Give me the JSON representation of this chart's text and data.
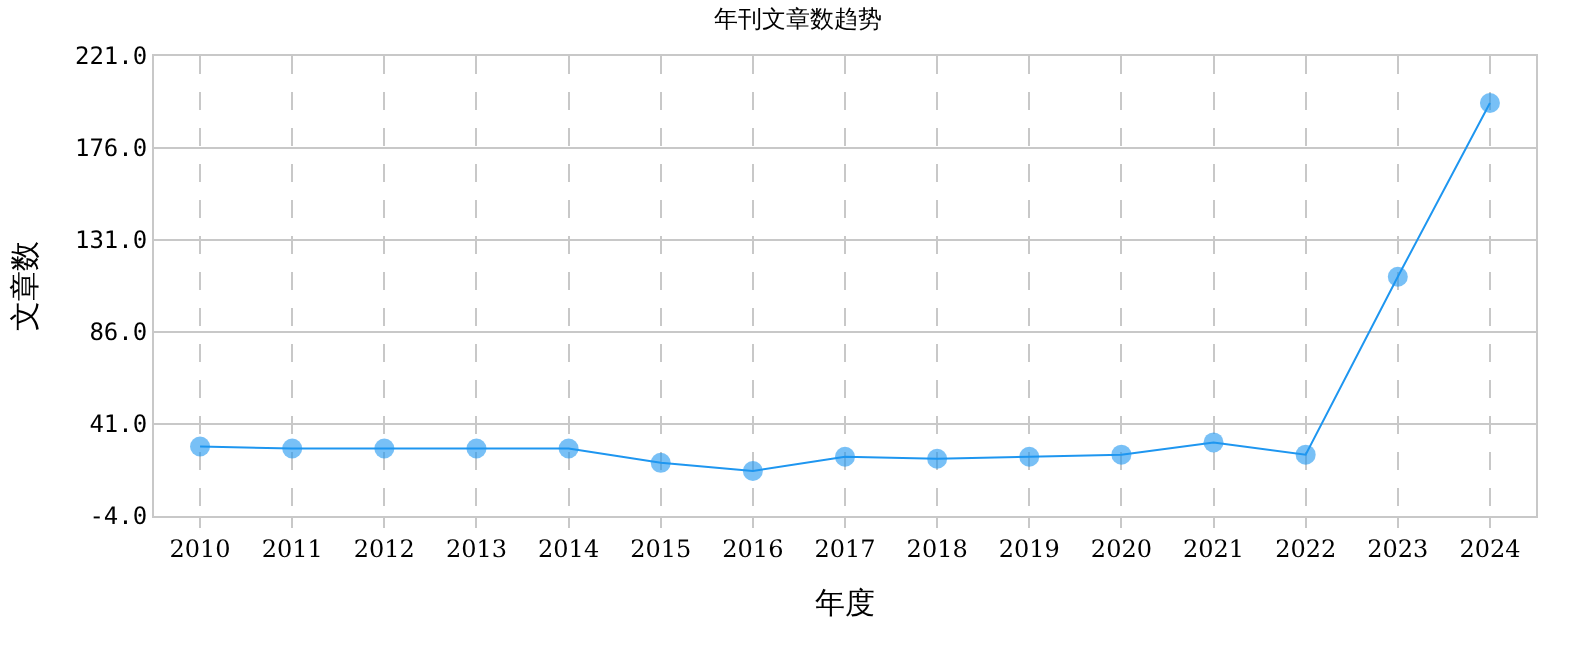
{
  "chart_data": {
    "type": "line",
    "title": "年刊文章数趋势",
    "xlabel": "年度",
    "ylabel": "文章数",
    "categories": [
      "2010",
      "2011",
      "2012",
      "2013",
      "2014",
      "2015",
      "2016",
      "2017",
      "2018",
      "2019",
      "2020",
      "2021",
      "2022",
      "2023",
      "2024"
    ],
    "series": [
      {
        "color": "#1e96f0",
        "values": [
          30,
          29,
          29,
          29,
          29,
          22,
          18,
          25,
          24,
          25,
          26,
          32,
          26,
          113,
          198
        ]
      }
    ],
    "ylim": [
      -4,
      221
    ],
    "yticks": [
      {
        "value": -4,
        "label": "-4.0"
      },
      {
        "value": 41,
        "label": "41.0"
      },
      {
        "value": 86,
        "label": "86.0"
      },
      {
        "value": 131,
        "label": "131.0"
      },
      {
        "value": 176,
        "label": "176.0"
      },
      {
        "value": 221,
        "label": "221.0"
      }
    ],
    "grid": true,
    "marker": "circle",
    "line_style": "solid"
  }
}
